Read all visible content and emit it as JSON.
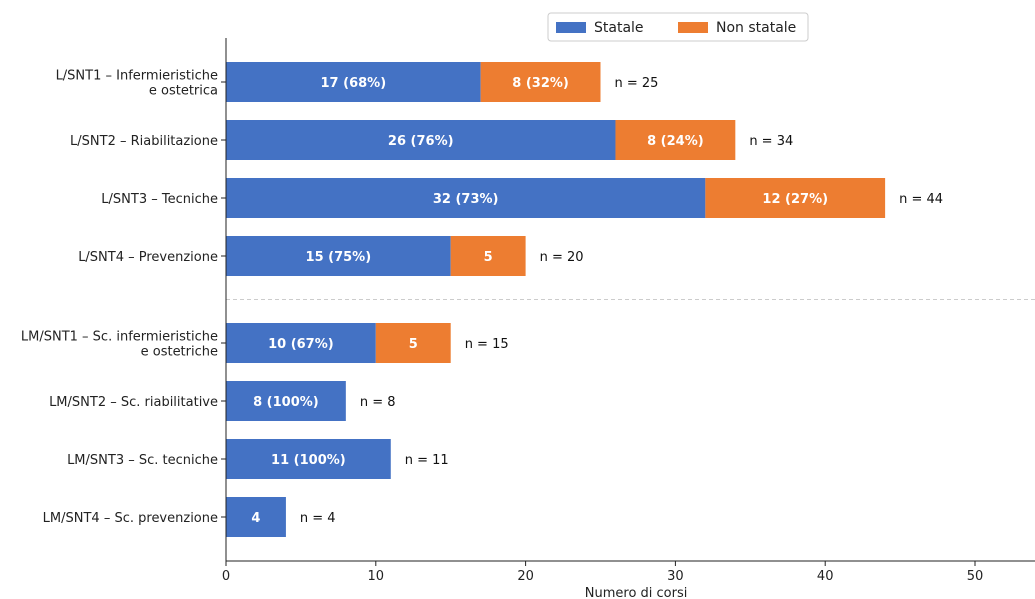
{
  "chart_data": {
    "type": "bar",
    "orientation": "horizontal",
    "stacked": true,
    "categories": [
      [
        "L/SNT1 – Infermieristiche",
        "e ostetrica"
      ],
      [
        "L/SNT2 – Riabilitazione"
      ],
      [
        "L/SNT3 – Tecniche"
      ],
      [
        "L/SNT4 – Prevenzione"
      ],
      [
        "LM/SNT1 – Sc. infermieristiche",
        "e ostetriche"
      ],
      [
        "LM/SNT2 – Sc. riabilitative"
      ],
      [
        "LM/SNT3 – Sc. tecniche"
      ],
      [
        "LM/SNT4 – Sc. prevenzione"
      ]
    ],
    "series": [
      {
        "name": "Statale",
        "color": "#4472c4",
        "values": [
          17,
          26,
          32,
          15,
          10,
          8,
          11,
          4
        ],
        "labels": [
          "17  (68%)",
          "26  (76%)",
          "32  (73%)",
          "15  (75%)",
          "10  (67%)",
          "8  (100%)",
          "11  (100%)",
          "4"
        ]
      },
      {
        "name": "Non statale",
        "color": "#ed7d31",
        "values": [
          8,
          8,
          12,
          5,
          5,
          0,
          0,
          0
        ],
        "labels": [
          "8  (32%)",
          "8  (24%)",
          "12  (27%)",
          "5",
          "5",
          "",
          "",
          ""
        ]
      }
    ],
    "totals": [
      "n = 25",
      "n = 34",
      "n = 44",
      "n = 20",
      "n = 15",
      "n = 8",
      "n = 11",
      "n = 4"
    ],
    "xlabel": "Numero di corsi",
    "xlim": [
      0,
      54
    ],
    "xticks": [
      0,
      10,
      20,
      30,
      40,
      50
    ],
    "legend": "top-right",
    "separator_after_index": 3
  }
}
